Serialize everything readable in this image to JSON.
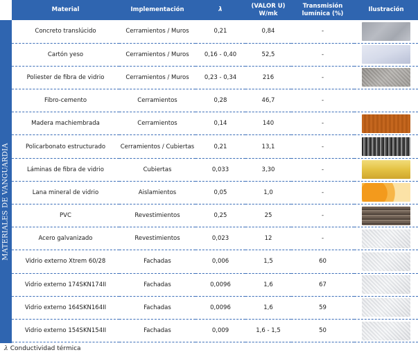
{
  "side_label": "MATERIALES DE VANGUARDIA",
  "headers": {
    "material": "Material",
    "implementacion": "Implementación",
    "lambda": "λ",
    "valor_u_line1": "(VALOR U)",
    "valor_u_line2": "W/mk",
    "transmision_line1": "Transmisión",
    "transmision_line2": "lumínica (%)",
    "ilustracion": "Ilustración"
  },
  "rows": [
    {
      "material": "Concreto translúcido",
      "implementacion": "Cerramientos / Muros",
      "lambda": "0,21",
      "valor_u": "0,84",
      "transmision": "-",
      "image": "concreto"
    },
    {
      "material": "Cartón yeso",
      "implementacion": "Cerramientos / Muros",
      "lambda": "0,16 - 0,40",
      "valor_u": "52,5",
      "transmision": "-",
      "image": "carton"
    },
    {
      "material": "Poliester de fibra de vidrio",
      "implementacion": "Cerramientos / Muros",
      "lambda": "0,23 - 0,34",
      "valor_u": "216",
      "transmision": "-",
      "image": "poliester"
    },
    {
      "material": "Fibro-cemento",
      "implementacion": "Cerramientos",
      "lambda": "0,28",
      "valor_u": "46,7",
      "transmision": "-",
      "image": "empty"
    },
    {
      "material": "Madera machiembrada",
      "implementacion": "Cerramientos",
      "lambda": "0,14",
      "valor_u": "140",
      "transmision": "-",
      "image": "madera"
    },
    {
      "material": "Policarbonato estructurado",
      "implementacion": "Cerramientos / Cubiertas",
      "lambda": "0,21",
      "valor_u": "13,1",
      "transmision": "-",
      "image": "policarbonato"
    },
    {
      "material": "Láminas de fibra de vidrio",
      "implementacion": "Cubiertas",
      "lambda": "0,033",
      "valor_u": "3,30",
      "transmision": "-",
      "image": "laminas"
    },
    {
      "material": "Lana mineral de vidrio",
      "implementacion": "Aislamientos",
      "lambda": "0,05",
      "valor_u": "1,0",
      "transmision": "-",
      "image": "lana"
    },
    {
      "material": "PVC",
      "implementacion": "Revestimientos",
      "lambda": "0,25",
      "valor_u": "25",
      "transmision": "-",
      "image": "pvc"
    },
    {
      "material": "Acero galvanizado",
      "implementacion": "Revestimientos",
      "lambda": "0,023",
      "valor_u": "12",
      "transmision": "-",
      "image": "glass"
    },
    {
      "material": "Vidrio externo Xtrem 60/28",
      "implementacion": "Fachadas",
      "lambda": "0,006",
      "valor_u": "1,5",
      "transmision": "60",
      "image": "glass"
    },
    {
      "material": "Vidrio externo 174SKN174II",
      "implementacion": "Fachadas",
      "lambda": "0,0096",
      "valor_u": "1,6",
      "transmision": "67",
      "image": "glass"
    },
    {
      "material": "Vidrio externo 164SKN164II",
      "implementacion": "Fachadas",
      "lambda": "0,0096",
      "valor_u": "1,6",
      "transmision": "59",
      "image": "glass"
    },
    {
      "material": "Vidrio externo 154SKN154II",
      "implementacion": "Fachadas",
      "lambda": "0,009",
      "valor_u": "1,6 - 1,5",
      "transmision": "50",
      "image": "glass"
    }
  ],
  "footnote": {
    "symbol": "λ",
    "text": "Conductividad térmica"
  },
  "colors": {
    "header_bg": "#2f65b0",
    "divider": "#3a6db8"
  }
}
